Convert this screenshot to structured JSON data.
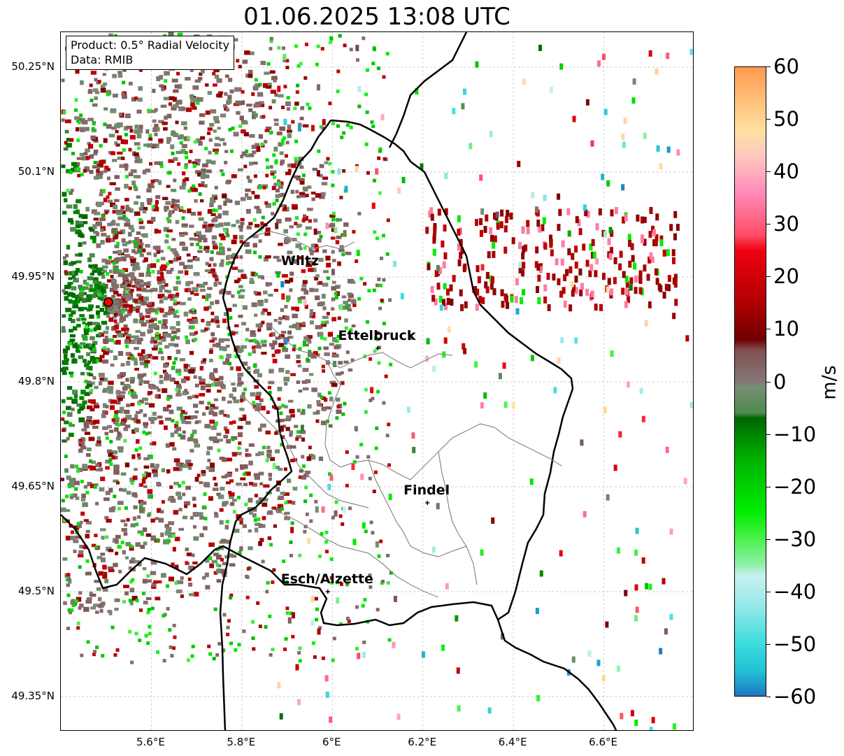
{
  "title": "01.06.2025 13:08 UTC",
  "info": {
    "product": "Product: 0.5° Radial Velocity",
    "source": "Data: RMIB"
  },
  "map": {
    "lon_range": [
      5.4,
      6.8
    ],
    "lat_range": [
      49.3,
      50.3
    ],
    "lat_ticks": [
      {
        "value": 50.25,
        "label": "50.25°N"
      },
      {
        "value": 50.1,
        "label": "50.1°N"
      },
      {
        "value": 49.95,
        "label": "49.95°N"
      },
      {
        "value": 49.8,
        "label": "49.8°N"
      },
      {
        "value": 49.65,
        "label": "49.65°N"
      },
      {
        "value": 49.5,
        "label": "49.5°N"
      },
      {
        "value": 49.35,
        "label": "49.35°N"
      }
    ],
    "lon_ticks": [
      {
        "value": 5.6,
        "label": "5.6°E"
      },
      {
        "value": 5.8,
        "label": "5.8°E"
      },
      {
        "value": 6.0,
        "label": "6°E"
      },
      {
        "value": 6.2,
        "label": "6.2°E"
      },
      {
        "value": 6.4,
        "label": "6.4°E"
      },
      {
        "value": 6.6,
        "label": "6.6°E"
      }
    ],
    "radar_site": {
      "lon": 5.505,
      "lat": 49.914,
      "color": "#ff0000"
    },
    "cities": [
      {
        "name": "Wiltz",
        "lon": 5.93,
        "lat": 49.966,
        "marker": false
      },
      {
        "name": "Ettelbruck",
        "lon": 6.1,
        "lat": 49.848,
        "marker": true
      },
      {
        "name": "Findel",
        "lon": 6.21,
        "lat": 49.627,
        "marker": true
      },
      {
        "name": "Esch/Alzette",
        "lon": 5.99,
        "lat": 49.5,
        "marker": true
      }
    ]
  },
  "colorbar": {
    "label": "m/s",
    "min": -60,
    "max": 60,
    "ticks": [
      {
        "value": 60,
        "label": "60"
      },
      {
        "value": 50,
        "label": "50"
      },
      {
        "value": 40,
        "label": "40"
      },
      {
        "value": 30,
        "label": "30"
      },
      {
        "value": 20,
        "label": "20"
      },
      {
        "value": 10,
        "label": "10"
      },
      {
        "value": 0,
        "label": "0"
      },
      {
        "value": -10,
        "label": "−10"
      },
      {
        "value": -20,
        "label": "−20"
      },
      {
        "value": -30,
        "label": "−30"
      },
      {
        "value": -40,
        "label": "−40"
      },
      {
        "value": -50,
        "label": "−50"
      },
      {
        "value": -60,
        "label": "−60"
      }
    ],
    "stops": [
      {
        "value": -60,
        "color": "#1f77c4"
      },
      {
        "value": -55,
        "color": "#22c4d4"
      },
      {
        "value": -50,
        "color": "#3ddcdc"
      },
      {
        "value": -42,
        "color": "#9feaea"
      },
      {
        "value": -37,
        "color": "#c8f0f0"
      },
      {
        "value": -35,
        "color": "#8ef0a8"
      },
      {
        "value": -30,
        "color": "#4cf04c"
      },
      {
        "value": -25,
        "color": "#00ee00"
      },
      {
        "value": -15,
        "color": "#00b300"
      },
      {
        "value": -7,
        "color": "#006600"
      },
      {
        "value": -6,
        "color": "#4f8a4f"
      },
      {
        "value": -1,
        "color": "#768d76"
      },
      {
        "value": 0,
        "color": "#867777"
      },
      {
        "value": 6,
        "color": "#805050"
      },
      {
        "value": 8,
        "color": "#700000"
      },
      {
        "value": 15,
        "color": "#b00000"
      },
      {
        "value": 25,
        "color": "#f00010"
      },
      {
        "value": 28,
        "color": "#ff4d66"
      },
      {
        "value": 36,
        "color": "#ff8ab8"
      },
      {
        "value": 43,
        "color": "#ffc8c0"
      },
      {
        "value": 48,
        "color": "#ffe0a0"
      },
      {
        "value": 60,
        "color": "#ff9a50"
      }
    ]
  }
}
